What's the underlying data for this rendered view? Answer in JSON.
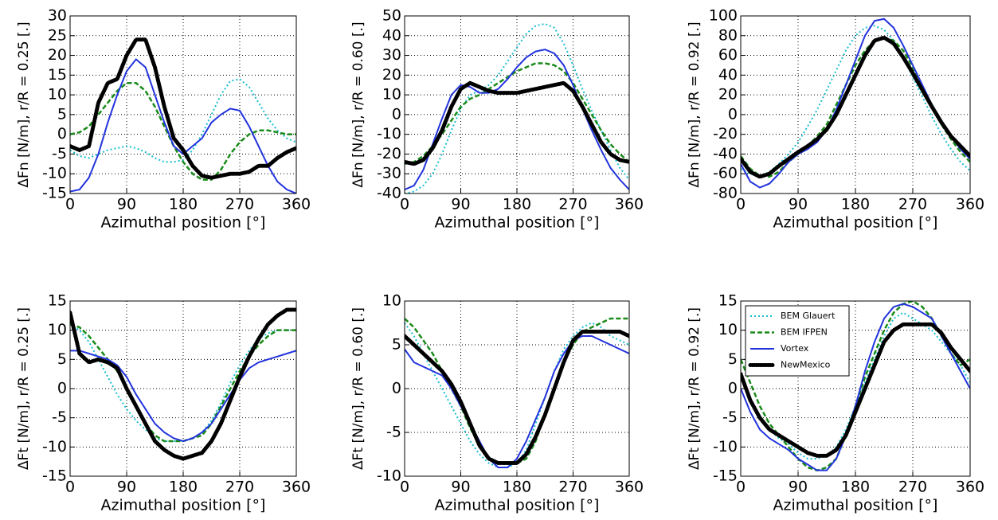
{
  "chart_data": [
    {
      "type": "line",
      "ylabel": "ΔFn [N/m], r/R = 0.25 [.]",
      "xlabel": "Azimuthal position [°]",
      "x": [
        0,
        15,
        30,
        45,
        60,
        75,
        90,
        105,
        120,
        135,
        150,
        165,
        180,
        195,
        210,
        225,
        240,
        255,
        270,
        285,
        300,
        315,
        330,
        345,
        360
      ],
      "xlim": [
        0,
        360
      ],
      "xticks": [
        0,
        90,
        180,
        270,
        360
      ],
      "ylim": [
        -15,
        30
      ],
      "yticks": [
        -15,
        -10,
        -5,
        0,
        5,
        10,
        15,
        20,
        25,
        30
      ],
      "grid": true,
      "series": [
        {
          "color": "#17becf",
          "style": "dotted",
          "values": [
            -4,
            -5.5,
            -6,
            -5,
            -4,
            -3.5,
            -3,
            -3.5,
            -4.5,
            -6,
            -7,
            -7,
            -6.5,
            -4,
            0,
            5,
            10,
            13.5,
            14,
            12,
            8,
            4,
            1,
            -1,
            -2
          ]
        },
        {
          "color": "#1a8a1a",
          "style": "dashed",
          "values": [
            0,
            0.5,
            2,
            5,
            8,
            11,
            13,
            13,
            11,
            7,
            2,
            -3,
            -7,
            -10,
            -11.5,
            -11.5,
            -9,
            -5,
            -2,
            0,
            1,
            1,
            0.5,
            0,
            0
          ]
        },
        {
          "color": "#2233dd",
          "style": "solid",
          "values": [
            -14.5,
            -14,
            -11,
            -5,
            3,
            10,
            16,
            19,
            17,
            10,
            3,
            -3,
            -5,
            -3,
            -1,
            3,
            5,
            6.5,
            6,
            2,
            -3,
            -8,
            -12,
            -14,
            -15
          ]
        },
        {
          "color": "#000000",
          "style": "dots",
          "values": [
            -3,
            -4,
            -3,
            8,
            13,
            14,
            20,
            24,
            24,
            17,
            7,
            -1,
            -4,
            -8,
            -10.5,
            -11,
            -10.5,
            -10,
            -10,
            -9.5,
            -8,
            -8,
            -6,
            -4.5,
            -3.5
          ]
        }
      ]
    },
    {
      "type": "line",
      "ylabel": "ΔFn [N/m], r/R = 0.60 [.]",
      "xlabel": "Azimuthal position [°]",
      "x": [
        0,
        15,
        30,
        45,
        60,
        75,
        90,
        105,
        120,
        135,
        150,
        165,
        180,
        195,
        210,
        225,
        240,
        255,
        270,
        285,
        300,
        315,
        330,
        345,
        360
      ],
      "xlim": [
        0,
        360
      ],
      "xticks": [
        0,
        90,
        180,
        270,
        360
      ],
      "ylim": [
        -40,
        50
      ],
      "yticks": [
        -40,
        -30,
        -20,
        -10,
        0,
        10,
        20,
        30,
        40,
        50
      ],
      "grid": true,
      "series": [
        {
          "color": "#17becf",
          "style": "dotted",
          "values": [
            -40,
            -39,
            -36,
            -30,
            -20,
            -8,
            3,
            10,
            12,
            15,
            20,
            27,
            34,
            41,
            45,
            46,
            44,
            36,
            25,
            13,
            2,
            -8,
            -18,
            -27,
            -33
          ]
        },
        {
          "color": "#1a8a1a",
          "style": "dashed",
          "values": [
            -25,
            -24,
            -21,
            -16,
            -10,
            -3,
            4,
            8,
            10,
            13,
            16,
            19,
            22,
            24,
            26,
            26,
            25,
            22,
            16,
            8,
            0,
            -8,
            -15,
            -20,
            -24
          ]
        },
        {
          "color": "#2233dd",
          "style": "solid",
          "values": [
            -38,
            -36,
            -28,
            -15,
            -2,
            10,
            15,
            14,
            11,
            11,
            13,
            18,
            24,
            29,
            32,
            33,
            31,
            25,
            15,
            3,
            -8,
            -18,
            -27,
            -33,
            -38
          ]
        },
        {
          "color": "#000000",
          "style": "dots",
          "values": [
            -24,
            -25,
            -23,
            -17,
            -8,
            4,
            13,
            16,
            14,
            12,
            11,
            11,
            11,
            12,
            13,
            14,
            15,
            16,
            12,
            4,
            -5,
            -14,
            -20,
            -23,
            -24
          ]
        }
      ]
    },
    {
      "type": "line",
      "ylabel": "ΔFn [N/m], r/R = 0.92 [.]",
      "xlabel": "Azimuthal position [°]",
      "x": [
        0,
        15,
        30,
        45,
        60,
        75,
        90,
        105,
        120,
        135,
        150,
        165,
        180,
        195,
        210,
        225,
        240,
        255,
        270,
        285,
        300,
        315,
        330,
        345,
        360
      ],
      "xlim": [
        0,
        360
      ],
      "xticks": [
        0,
        90,
        180,
        270,
        360
      ],
      "ylim": [
        -80,
        100
      ],
      "yticks": [
        -80,
        -60,
        -40,
        -20,
        0,
        20,
        40,
        60,
        80,
        100
      ],
      "grid": true,
      "series": [
        {
          "color": "#17becf",
          "style": "dotted",
          "values": [
            -55,
            -60,
            -63,
            -58,
            -50,
            -40,
            -28,
            -12,
            5,
            25,
            45,
            65,
            80,
            88,
            90,
            86,
            75,
            58,
            38,
            18,
            -2,
            -20,
            -35,
            -48,
            -57
          ]
        },
        {
          "color": "#1a8a1a",
          "style": "dashed",
          "values": [
            -42,
            -55,
            -62,
            -63,
            -58,
            -48,
            -40,
            -32,
            -22,
            -10,
            10,
            30,
            50,
            65,
            75,
            78,
            75,
            65,
            48,
            28,
            8,
            -10,
            -25,
            -38,
            -48
          ]
        },
        {
          "color": "#2233dd",
          "style": "solid",
          "values": [
            -50,
            -68,
            -74,
            -70,
            -60,
            -48,
            -40,
            -35,
            -28,
            -15,
            5,
            30,
            55,
            80,
            95,
            97,
            88,
            70,
            50,
            30,
            10,
            -8,
            -22,
            -35,
            -45
          ]
        },
        {
          "color": "#000000",
          "style": "dots",
          "values": [
            -45,
            -58,
            -63,
            -60,
            -52,
            -45,
            -38,
            -32,
            -25,
            -15,
            0,
            20,
            40,
            60,
            75,
            78,
            72,
            58,
            42,
            25,
            8,
            -8,
            -22,
            -32,
            -42
          ]
        }
      ]
    },
    {
      "type": "line",
      "ylabel": "ΔFt [N/m], r/R = 0.25 [.]",
      "xlabel": "Azimuthal position [°]",
      "x": [
        0,
        15,
        30,
        45,
        60,
        75,
        90,
        105,
        120,
        135,
        150,
        165,
        180,
        195,
        210,
        225,
        240,
        255,
        270,
        285,
        300,
        315,
        330,
        345,
        360
      ],
      "xlim": [
        0,
        360
      ],
      "xticks": [
        0,
        90,
        180,
        270,
        360
      ],
      "ylim": [
        -15,
        15
      ],
      "yticks": [
        -15,
        -10,
        -5,
        0,
        5,
        10,
        15
      ],
      "grid": true,
      "series": [
        {
          "color": "#17becf",
          "style": "dotted",
          "values": [
            11,
            10,
            8,
            5,
            2,
            -1,
            -3.5,
            -5.5,
            -7,
            -8.5,
            -9,
            -9,
            -9,
            -8.5,
            -7.5,
            -5.5,
            -2.5,
            1,
            4,
            6.5,
            8.5,
            9.5,
            10,
            10,
            10
          ]
        },
        {
          "color": "#1a8a1a",
          "style": "dashed",
          "values": [
            11,
            10.5,
            9,
            7,
            5,
            3,
            0,
            -3,
            -6,
            -8,
            -9,
            -9,
            -9,
            -8.5,
            -8,
            -6,
            -3,
            0,
            3,
            5.5,
            7.5,
            9,
            10,
            10,
            10
          ]
        },
        {
          "color": "#2233dd",
          "style": "solid",
          "values": [
            6.5,
            6.5,
            6,
            5.5,
            5,
            4,
            2,
            -1,
            -3.5,
            -6,
            -7.5,
            -8.5,
            -9,
            -8.5,
            -7.5,
            -6,
            -3.5,
            -1,
            1.5,
            3.5,
            4.5,
            5,
            5.5,
            6,
            6.5
          ]
        },
        {
          "color": "#000000",
          "style": "dots",
          "values": [
            13,
            6,
            4.5,
            5,
            4.5,
            3.5,
            0,
            -3,
            -6,
            -9,
            -10.5,
            -11.5,
            -12,
            -11.5,
            -11,
            -9,
            -6,
            -2,
            2,
            5.5,
            8.5,
            11,
            12.5,
            13.5,
            13.5
          ]
        }
      ]
    },
    {
      "type": "line",
      "ylabel": "ΔFt [N/m], r/R = 0.60 [.]",
      "xlabel": "Azimuthal position [°]",
      "x": [
        0,
        15,
        30,
        45,
        60,
        75,
        90,
        105,
        120,
        135,
        150,
        165,
        180,
        195,
        210,
        225,
        240,
        255,
        270,
        285,
        300,
        315,
        330,
        345,
        360
      ],
      "xlim": [
        0,
        360
      ],
      "xticks": [
        0,
        90,
        180,
        270,
        360
      ],
      "ylim": [
        -10,
        10
      ],
      "yticks": [
        -10,
        -5,
        0,
        5,
        10
      ],
      "grid": true,
      "series": [
        {
          "color": "#17becf",
          "style": "dotted",
          "values": [
            7.5,
            6,
            4,
            2,
            0,
            -2,
            -4,
            -6,
            -7.5,
            -8.5,
            -9,
            -9,
            -8.5,
            -7,
            -4,
            -1,
            2,
            4.5,
            6,
            7,
            7.5,
            7,
            6,
            5.5,
            5
          ]
        },
        {
          "color": "#1a8a1a",
          "style": "dashed",
          "values": [
            8,
            7,
            5.5,
            4,
            2,
            0,
            -2,
            -4.5,
            -6.5,
            -8,
            -8.5,
            -8.5,
            -8.5,
            -8,
            -6,
            -3,
            0,
            3,
            5,
            6.5,
            7,
            7.5,
            8,
            8,
            8
          ]
        },
        {
          "color": "#2233dd",
          "style": "solid",
          "values": [
            4.5,
            3,
            2.5,
            2,
            1.5,
            0,
            -2,
            -4,
            -6,
            -8,
            -9,
            -9,
            -8,
            -6,
            -3.5,
            -1,
            2,
            4,
            5.5,
            6,
            6,
            5.5,
            5,
            4.5,
            4
          ]
        },
        {
          "color": "#000000",
          "style": "dots",
          "values": [
            6,
            5,
            4,
            3,
            2,
            0.5,
            -1.5,
            -4,
            -6.5,
            -8,
            -8.5,
            -8.5,
            -8.5,
            -7.5,
            -5.5,
            -3,
            0,
            3,
            5.5,
            6.5,
            6.5,
            6.5,
            6.5,
            6.5,
            6
          ]
        }
      ]
    },
    {
      "type": "line",
      "ylabel": "ΔFt [N/m], r/R = 0.92 [.]",
      "xlabel": "Azimuthal position [°]",
      "x": [
        0,
        15,
        30,
        45,
        60,
        75,
        90,
        105,
        120,
        135,
        150,
        165,
        180,
        195,
        210,
        225,
        240,
        255,
        270,
        285,
        300,
        315,
        330,
        345,
        360
      ],
      "xlim": [
        0,
        360
      ],
      "xticks": [
        0,
        90,
        180,
        270,
        360
      ],
      "ylim": [
        -15,
        15
      ],
      "yticks": [
        -15,
        -10,
        -5,
        0,
        5,
        10,
        15
      ],
      "grid": true,
      "legend": "upper left",
      "series": [
        {
          "name": "BEM Glauert",
          "color": "#17becf",
          "style": "dotted",
          "values": [
            2,
            -2,
            -5,
            -7,
            -8.5,
            -9.5,
            -11,
            -12,
            -12,
            -11.5,
            -10,
            -7,
            -3,
            1,
            5,
            9,
            12,
            13,
            12,
            11,
            10,
            8,
            6,
            4,
            1
          ]
        },
        {
          "name": "BEM IFPEN",
          "color": "#1a8a1a",
          "style": "dashed",
          "values": [
            5,
            1,
            -3,
            -6,
            -8,
            -10,
            -12,
            -13.5,
            -14,
            -13.5,
            -12,
            -8,
            -3,
            2,
            6,
            10,
            13,
            14.5,
            15,
            14,
            12,
            9,
            6,
            4,
            5
          ]
        },
        {
          "name": "Vortex",
          "color": "#2233dd",
          "style": "solid",
          "values": [
            0,
            -4,
            -7,
            -8.5,
            -9.5,
            -10.5,
            -12,
            -13,
            -14,
            -14,
            -12,
            -8,
            -3,
            3,
            8,
            12,
            14,
            14.5,
            14,
            13,
            12,
            9,
            6,
            3,
            0
          ]
        },
        {
          "name": "NewMexico",
          "color": "#000000",
          "style": "dots",
          "values": [
            2.5,
            -2,
            -5,
            -7,
            -8,
            -9,
            -10,
            -11,
            -11.5,
            -11.5,
            -10.5,
            -8,
            -4,
            0,
            4,
            8,
            10,
            11,
            11,
            11,
            11,
            9.5,
            7,
            5,
            3
          ]
        }
      ]
    }
  ]
}
